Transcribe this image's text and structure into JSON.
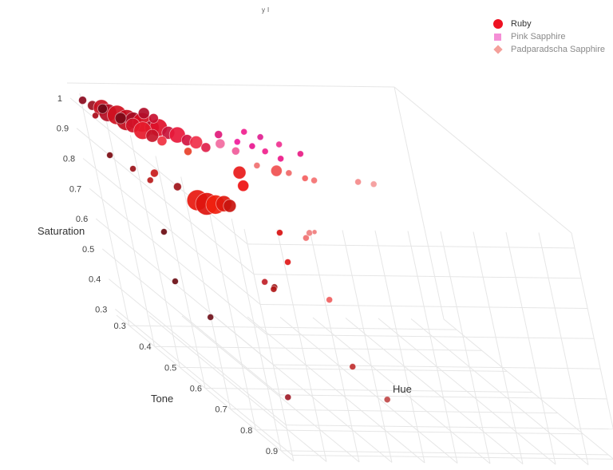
{
  "chart_data": {
    "type": "scatter",
    "title": "",
    "title_visible_fragment": "ʸ ˡ",
    "axes": {
      "x": {
        "label": "Hue"
      },
      "y": {
        "label": "Tone",
        "ticks": [
          "0.3",
          "0.4",
          "0.5",
          "0.6",
          "0.7",
          "0.8",
          "0.9"
        ],
        "range": [
          0.25,
          0.95
        ]
      },
      "z": {
        "label": "Saturation",
        "ticks": [
          "0.3",
          "0.4",
          "0.5",
          "0.6",
          "0.7",
          "0.8",
          "0.9",
          "1"
        ],
        "range": [
          0.28,
          1.05
        ]
      }
    },
    "grid": true,
    "legend_placement": "top-right",
    "legend": [
      {
        "name": "Ruby",
        "symbol": "circle",
        "color": "#ee1122"
      },
      {
        "name": "Pink Sapphire",
        "symbol": "square",
        "color": "#f48fd6"
      },
      {
        "name": "Padparadscha Sapphire",
        "symbol": "diamond",
        "color": "#f4a09a"
      }
    ],
    "series": [
      {
        "name": "Ruby",
        "symbol": "circle",
        "points": [
          {
            "x": 0.03,
            "y": 0.26,
            "z": 1.0,
            "s": 5,
            "c": "#8b0a1e"
          },
          {
            "x": 0.05,
            "y": 0.27,
            "z": 0.99,
            "s": 6,
            "c": "#9c1020"
          },
          {
            "x": 0.07,
            "y": 0.28,
            "z": 0.99,
            "s": 10,
            "c": "#c81020"
          },
          {
            "x": 0.08,
            "y": 0.29,
            "z": 0.98,
            "s": 11,
            "c": "#b40e24"
          },
          {
            "x": 0.1,
            "y": 0.3,
            "z": 0.98,
            "s": 12,
            "c": "#d01020"
          },
          {
            "x": 0.12,
            "y": 0.31,
            "z": 0.97,
            "s": 13,
            "c": "#c20c1c"
          },
          {
            "x": 0.14,
            "y": 0.31,
            "z": 0.97,
            "s": 10,
            "c": "#a40c24"
          },
          {
            "x": 0.16,
            "y": 0.32,
            "z": 0.97,
            "s": 12,
            "c": "#d80c20"
          },
          {
            "x": 0.18,
            "y": 0.33,
            "z": 0.96,
            "s": 9,
            "c": "#b3102a"
          },
          {
            "x": 0.2,
            "y": 0.33,
            "z": 0.96,
            "s": 11,
            "c": "#e0102a"
          },
          {
            "x": 0.22,
            "y": 0.34,
            "z": 0.95,
            "s": 8,
            "c": "#c8143a"
          },
          {
            "x": 0.24,
            "y": 0.35,
            "z": 0.95,
            "s": 10,
            "c": "#e8183a"
          },
          {
            "x": 0.26,
            "y": 0.36,
            "z": 0.94,
            "s": 7,
            "c": "#d21440"
          },
          {
            "x": 0.28,
            "y": 0.37,
            "z": 0.94,
            "s": 8,
            "c": "#f0304a"
          },
          {
            "x": 0.3,
            "y": 0.38,
            "z": 0.93,
            "s": 6,
            "c": "#e0204a"
          },
          {
            "x": 0.09,
            "y": 0.33,
            "z": 0.99,
            "s": 7,
            "c": "#7a0a18"
          },
          {
            "x": 0.11,
            "y": 0.35,
            "z": 0.98,
            "s": 9,
            "c": "#d41228"
          },
          {
            "x": 0.13,
            "y": 0.36,
            "z": 0.97,
            "s": 11,
            "c": "#e61a2a"
          },
          {
            "x": 0.15,
            "y": 0.37,
            "z": 0.96,
            "s": 8,
            "c": "#c41428"
          },
          {
            "x": 0.17,
            "y": 0.38,
            "z": 0.95,
            "s": 6,
            "c": "#f03040"
          },
          {
            "x": 0.06,
            "y": 0.3,
            "z": 1.0,
            "s": 6,
            "c": "#6e0816"
          },
          {
            "x": 0.19,
            "y": 0.29,
            "z": 0.98,
            "s": 7,
            "c": "#b00c28"
          },
          {
            "x": 0.21,
            "y": 0.3,
            "z": 0.97,
            "s": 6,
            "c": "#c81030"
          },
          {
            "x": 0.04,
            "y": 0.29,
            "z": 0.97,
            "s": 4,
            "c": "#a80a18"
          },
          {
            "x": 0.23,
            "y": 0.4,
            "z": 0.93,
            "s": 5,
            "c": "#e8402a"
          },
          {
            "x": 0.31,
            "y": 0.5,
            "z": 0.93,
            "s": 8,
            "c": "#e81a1a"
          },
          {
            "x": 0.3,
            "y": 0.52,
            "z": 0.9,
            "s": 7,
            "c": "#ee1010"
          },
          {
            "x": 0.02,
            "y": 0.35,
            "z": 0.88,
            "s": 4,
            "c": "#7a0a10"
          },
          {
            "x": 0.05,
            "y": 0.4,
            "z": 0.87,
            "s": 4,
            "c": "#9a1018"
          },
          {
            "x": 0.07,
            "y": 0.44,
            "z": 0.86,
            "s": 4,
            "c": "#b81a1a"
          },
          {
            "x": 0.1,
            "y": 0.42,
            "z": 0.87,
            "s": 5,
            "c": "#c81a1a"
          },
          {
            "x": 0.13,
            "y": 0.47,
            "z": 0.86,
            "s": 5,
            "c": "#a0141a"
          },
          {
            "x": 0.15,
            "y": 0.52,
            "z": 0.85,
            "s": 13,
            "c": "#e8180e"
          },
          {
            "x": 0.17,
            "y": 0.53,
            "z": 0.845,
            "s": 14,
            "c": "#dd140e"
          },
          {
            "x": 0.19,
            "y": 0.54,
            "z": 0.85,
            "s": 12,
            "c": "#f0200e"
          },
          {
            "x": 0.21,
            "y": 0.55,
            "z": 0.86,
            "s": 10,
            "c": "#e0180e"
          },
          {
            "x": 0.22,
            "y": 0.56,
            "z": 0.86,
            "s": 8,
            "c": "#c8140e"
          },
          {
            "x": 0.33,
            "y": 0.6,
            "z": 0.8,
            "s": 4,
            "c": "#d81010"
          },
          {
            "x": 0.31,
            "y": 0.64,
            "z": 0.73,
            "s": 4,
            "c": "#e01818"
          },
          {
            "x": 0.04,
            "y": 0.5,
            "z": 0.73,
            "s": 4,
            "c": "#6a0a10"
          },
          {
            "x": 0.22,
            "y": 0.65,
            "z": 0.67,
            "s": 4,
            "c": "#c02028"
          },
          {
            "x": 0.24,
            "y": 0.66,
            "z": 0.66,
            "s": 4,
            "c": "#a01a1a"
          },
          {
            "x": 0.23,
            "y": 0.67,
            "z": 0.66,
            "s": 4,
            "c": "#b01818"
          },
          {
            "x": 0.01,
            "y": 0.55,
            "z": 0.6,
            "s": 4,
            "c": "#6a0c12"
          },
          {
            "x": 0.05,
            "y": 0.62,
            "z": 0.53,
            "s": 4,
            "c": "#70101a"
          },
          {
            "x": 0.12,
            "y": 0.8,
            "z": 0.39,
            "s": 4,
            "c": "#a01c28"
          },
          {
            "x": 0.37,
            "y": 0.75,
            "z": 0.46,
            "s": 4,
            "c": "#c03030"
          },
          {
            "x": 0.41,
            "y": 0.82,
            "z": 0.4,
            "s": 4,
            "c": "#c04848"
          }
        ]
      },
      {
        "name": "Pink Sapphire",
        "symbol": "circle",
        "points": [
          {
            "x": 0.36,
            "y": 0.36,
            "z": 0.96,
            "s": 5,
            "c": "#e01a7a"
          },
          {
            "x": 0.4,
            "y": 0.38,
            "z": 0.95,
            "s": 4,
            "c": "#f01a9a"
          },
          {
            "x": 0.43,
            "y": 0.4,
            "z": 0.95,
            "s": 4,
            "c": "#e81890"
          },
          {
            "x": 0.46,
            "y": 0.41,
            "z": 0.94,
            "s": 4,
            "c": "#f0208c"
          },
          {
            "x": 0.49,
            "y": 0.43,
            "z": 0.93,
            "s": 4,
            "c": "#ec1888"
          },
          {
            "x": 0.44,
            "y": 0.36,
            "z": 0.97,
            "s": 4,
            "c": "#f01e8e"
          },
          {
            "x": 0.48,
            "y": 0.37,
            "z": 0.96,
            "s": 4,
            "c": "#e02090"
          },
          {
            "x": 0.52,
            "y": 0.39,
            "z": 0.95,
            "s": 4,
            "c": "#f03090"
          },
          {
            "x": 0.56,
            "y": 0.42,
            "z": 0.94,
            "s": 4,
            "c": "#e81c84"
          },
          {
            "x": 0.34,
            "y": 0.39,
            "z": 0.95,
            "s": 6,
            "c": "#f26aa0"
          },
          {
            "x": 0.37,
            "y": 0.41,
            "z": 0.94,
            "s": 5,
            "c": "#f05a9a"
          }
        ]
      },
      {
        "name": "Padparadscha Sapphire",
        "symbol": "circle",
        "points": [
          {
            "x": 0.4,
            "y": 0.45,
            "z": 0.92,
            "s": 4,
            "c": "#f07070"
          },
          {
            "x": 0.45,
            "y": 0.46,
            "z": 0.91,
            "s": 7,
            "c": "#f05050"
          },
          {
            "x": 0.48,
            "y": 0.47,
            "z": 0.91,
            "s": 4,
            "c": "#f06868"
          },
          {
            "x": 0.52,
            "y": 0.48,
            "z": 0.9,
            "s": 4,
            "c": "#f46060"
          },
          {
            "x": 0.54,
            "y": 0.49,
            "z": 0.9,
            "s": 4,
            "c": "#f47070"
          },
          {
            "x": 0.68,
            "y": 0.48,
            "z": 0.89,
            "s": 4,
            "c": "#f48a8a"
          },
          {
            "x": 0.72,
            "y": 0.49,
            "z": 0.89,
            "s": 4,
            "c": "#f49a9a"
          },
          {
            "x": 0.42,
            "y": 0.58,
            "z": 0.77,
            "s": 4,
            "c": "#f07070"
          },
          {
            "x": 0.44,
            "y": 0.57,
            "z": 0.78,
            "s": 4,
            "c": "#f08080"
          },
          {
            "x": 0.45,
            "y": 0.58,
            "z": 0.79,
            "s": 3,
            "c": "#f07c7c"
          },
          {
            "x": 0.4,
            "y": 0.66,
            "z": 0.62,
            "s": 4,
            "c": "#f05e5e"
          }
        ]
      }
    ]
  }
}
